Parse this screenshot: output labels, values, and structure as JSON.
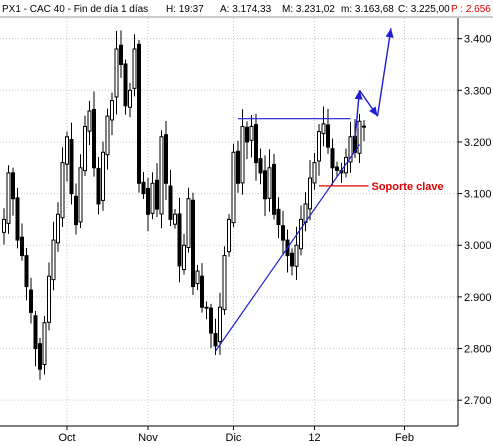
{
  "header": {
    "symbol": "PX1 - CAC 40 - Fin de día 1 días",
    "time": "H: 19:37",
    "ask": "A: 3.174,33",
    "mid": "M: 3.231,02",
    "low": "m: 3.163,68",
    "close": "C: 3.225,00",
    "pct": "P : 2.656"
  },
  "chart_data": {
    "type": "candlestick",
    "x_axis": {
      "ticks": [
        {
          "label": "Oct",
          "day": 14
        },
        {
          "label": "Nov",
          "day": 32
        },
        {
          "label": "Dic",
          "day": 51
        },
        {
          "label": "12",
          "day": 69
        },
        {
          "label": "Feb",
          "day": 89
        }
      ]
    },
    "y_axis": {
      "range": [
        2650,
        3440
      ],
      "ticks": [
        {
          "label": "2.700",
          "value": 2700
        },
        {
          "label": "2.800",
          "value": 2800
        },
        {
          "label": "2.900",
          "value": 2900
        },
        {
          "label": "3.000",
          "value": 3000
        },
        {
          "label": "3.100",
          "value": 3100
        },
        {
          "label": "3.200",
          "value": 3200
        },
        {
          "label": "3.300",
          "value": 3300
        },
        {
          "label": "3.400",
          "value": 3400
        }
      ]
    },
    "closes": [
      3050,
      3140,
      3090,
      3010,
      2980,
      2920,
      2870,
      2800,
      2760,
      2850,
      2940,
      3010,
      3060,
      3160,
      3210,
      3100,
      3040,
      3150,
      3230,
      3260,
      3150,
      3080,
      3180,
      3250,
      3280,
      3380,
      3350,
      3270,
      3300,
      3380,
      3120,
      3100,
      3060,
      3120,
      3070,
      3210,
      3120,
      3050,
      3060,
      2960,
      3000,
      3090,
      2920,
      2950,
      2880,
      2880,
      2830,
      2805,
      2880,
      2980,
      3050,
      3180,
      3120,
      3230,
      3200,
      3230,
      3160,
      3140,
      3090,
      3150,
      3060,
      3040,
      3010,
      2980,
      2960,
      3000,
      3050,
      3080,
      3130,
      3160,
      3220,
      3235,
      3190,
      3150,
      3145,
      3140,
      3170,
      3210,
      3180,
      3240,
      3230
    ],
    "resistance_line": {
      "from_day": 52,
      "to_day": 77,
      "value": 3245
    },
    "support_trendline": {
      "from": {
        "day": 47,
        "value": 2795
      },
      "to": {
        "day": 79,
        "value": 3195
      }
    },
    "key_support": {
      "from_day": 70,
      "to_day": 81,
      "value": 3115,
      "label": "Soporte clave"
    },
    "projection_path": [
      {
        "day": 78,
        "value": 3205
      },
      {
        "day": 79,
        "value": 3300
      },
      {
        "day": 83,
        "value": 3250
      },
      {
        "day": 86,
        "value": 3420
      }
    ]
  },
  "colors": {
    "candle": "#000000",
    "trendline": "#1f1fd0",
    "support": "#e00000",
    "grid": "#c8c8c8"
  }
}
